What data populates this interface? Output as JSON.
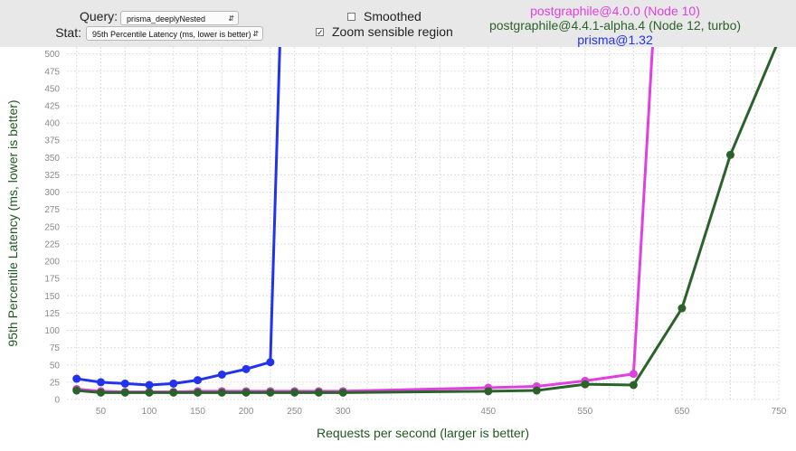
{
  "controls": {
    "query_label": "Query:",
    "query_value": "prisma_deeplyNested",
    "stat_label": "Stat:",
    "stat_value": "95th Percentile Latency (ms, lower is better)",
    "smoothed_label": "Smoothed",
    "smoothed_checked": false,
    "zoom_label": "Zoom sensible region",
    "zoom_checked": true
  },
  "chart_data": {
    "type": "line",
    "xlabel": "Requests per second (larger is better)",
    "ylabel": "95th Percentile Latency (ms, lower is better)",
    "xlim": [
      15,
      750
    ],
    "ylim": [
      0,
      510
    ],
    "x_ticks": [
      50,
      100,
      150,
      200,
      250,
      300,
      450,
      550,
      650,
      750
    ],
    "y_ticks": [
      0,
      25,
      50,
      75,
      100,
      125,
      150,
      175,
      200,
      225,
      250,
      275,
      300,
      325,
      350,
      375,
      400,
      425,
      450,
      475,
      500
    ],
    "grid": true,
    "legend_position": "top-right",
    "series": [
      {
        "name": "postgraphile@4.0.0 (Node 10)",
        "color": "#e040e0",
        "x": [
          25,
          50,
          75,
          100,
          125,
          150,
          175,
          200,
          225,
          250,
          275,
          300,
          450,
          500,
          550,
          600,
          620
        ],
        "y": [
          15,
          12,
          11,
          11,
          11,
          12,
          12,
          12,
          12,
          12,
          12,
          12,
          17,
          19,
          27,
          37,
          520
        ]
      },
      {
        "name": "postgraphile@4.4.1-alpha.4 (Node 12, turbo)",
        "color": "#2a622a",
        "x": [
          25,
          50,
          75,
          100,
          125,
          150,
          175,
          200,
          225,
          250,
          275,
          300,
          450,
          500,
          550,
          600,
          650,
          700,
          750
        ],
        "y": [
          13,
          10,
          10,
          10,
          10,
          10,
          10,
          10,
          10,
          10,
          10,
          10,
          12,
          13,
          22,
          21,
          132,
          354,
          520
        ]
      },
      {
        "name": "prisma@1.32",
        "color": "#2233ee",
        "x": [
          25,
          50,
          75,
          100,
          125,
          150,
          175,
          200,
          225,
          235
        ],
        "y": [
          30,
          25,
          23,
          21,
          23,
          28,
          36,
          44,
          54,
          520
        ]
      }
    ]
  }
}
